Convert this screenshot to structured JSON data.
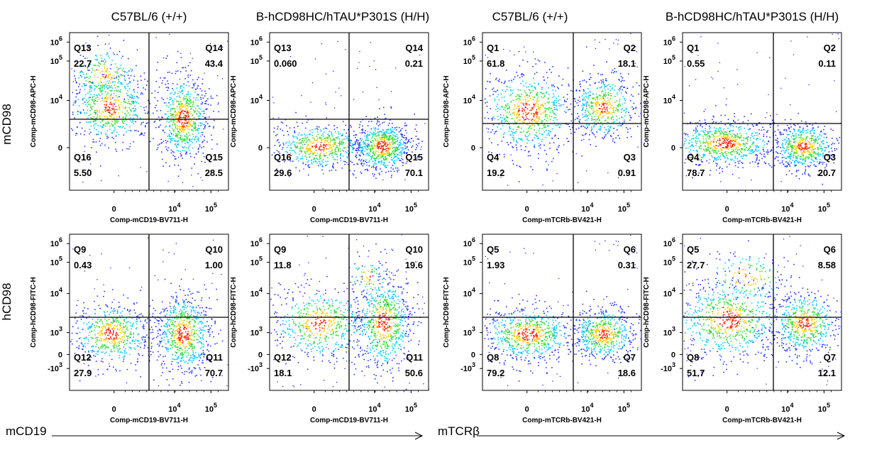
{
  "column_titles": [
    "C57BL/6 (+/+)",
    "B-hCD98HC/hTAU*P301S (H/H)",
    "C57BL/6 (+/+)",
    "B-hCD98HC/hTAU*P301S (H/H)"
  ],
  "row_labels": [
    "mCD98",
    "hCD98"
  ],
  "bottom_axis_labels": [
    "mCD19",
    "mTCRβ"
  ],
  "colors": {
    "density_low": "#0000ff",
    "density_mid": "#00ff00",
    "density_high": "#ff0000",
    "gate_line": "#000000"
  },
  "chart_data": [
    {
      "type": "scatter",
      "xlabel": "Comp-mCD19-BV711-H",
      "ylabel": "Comp-mCD98-APC-H",
      "x_ticks": [
        "0",
        "10^4",
        "10^5"
      ],
      "y_ticks": [
        "0",
        "10^4",
        "10^5",
        "10^6"
      ],
      "quadrants": [
        {
          "name": "Q13",
          "value": "22.7"
        },
        {
          "name": "Q14",
          "value": "43.4"
        },
        {
          "name": "Q16",
          "value": "5.50"
        },
        {
          "name": "Q15",
          "value": "28.5"
        }
      ]
    },
    {
      "type": "scatter",
      "xlabel": "Comp-mCD19-BV711-H",
      "ylabel": "Comp-mCD98-APC-H",
      "x_ticks": [
        "0",
        "10^4",
        "10^5"
      ],
      "y_ticks": [
        "0",
        "10^4",
        "10^5",
        "10^6"
      ],
      "quadrants": [
        {
          "name": "Q13",
          "value": "0.060"
        },
        {
          "name": "Q14",
          "value": "0.21"
        },
        {
          "name": "Q16",
          "value": "29.6"
        },
        {
          "name": "Q15",
          "value": "70.1"
        }
      ]
    },
    {
      "type": "scatter",
      "xlabel": "Comp-mTCRb-BV421-H",
      "ylabel": "Comp-mCD98-APC-H",
      "x_ticks": [
        "0",
        "10^4",
        "10^5"
      ],
      "y_ticks": [
        "0",
        "10^4",
        "10^5",
        "10^6"
      ],
      "quadrants": [
        {
          "name": "Q1",
          "value": "61.8"
        },
        {
          "name": "Q2",
          "value": "18.1"
        },
        {
          "name": "Q4",
          "value": "19.2"
        },
        {
          "name": "Q3",
          "value": "0.91"
        }
      ]
    },
    {
      "type": "scatter",
      "xlabel": "Comp-mTCRb-BV421-H",
      "ylabel": "Comp-mCD98-APC-H",
      "x_ticks": [
        "0",
        "10^4",
        "10^5"
      ],
      "y_ticks": [
        "0",
        "10^4",
        "10^5",
        "10^6"
      ],
      "quadrants": [
        {
          "name": "Q1",
          "value": "0.55"
        },
        {
          "name": "Q2",
          "value": "0.11"
        },
        {
          "name": "Q4",
          "value": "78.7"
        },
        {
          "name": "Q3",
          "value": "20.7"
        }
      ]
    },
    {
      "type": "scatter",
      "xlabel": "Comp-mCD19-BV711-H",
      "ylabel": "Comp-hCD98-FITC-H",
      "x_ticks": [
        "0",
        "10^4",
        "10^5"
      ],
      "y_ticks": [
        "-10^3",
        "0",
        "10^3",
        "10^4",
        "10^5",
        "10^6"
      ],
      "quadrants": [
        {
          "name": "Q9",
          "value": "0.43"
        },
        {
          "name": "Q10",
          "value": "1.00"
        },
        {
          "name": "Q12",
          "value": "27.9"
        },
        {
          "name": "Q11",
          "value": "70.7"
        }
      ]
    },
    {
      "type": "scatter",
      "xlabel": "Comp-mCD19-BV711-H",
      "ylabel": "Comp-hCD98-FITC-H",
      "x_ticks": [
        "0",
        "10^4",
        "10^5"
      ],
      "y_ticks": [
        "-10^3",
        "0",
        "10^3",
        "10^4",
        "10^5",
        "10^6"
      ],
      "quadrants": [
        {
          "name": "Q9",
          "value": "11.8"
        },
        {
          "name": "Q10",
          "value": "19.6"
        },
        {
          "name": "Q12",
          "value": "18.1"
        },
        {
          "name": "Q11",
          "value": "50.6"
        }
      ]
    },
    {
      "type": "scatter",
      "xlabel": "Comp-mTCRb-BV421-H",
      "ylabel": "Comp-hCD98-FITC-H",
      "x_ticks": [
        "0",
        "10^4",
        "10^5"
      ],
      "y_ticks": [
        "-10^3",
        "0",
        "10^3",
        "10^4",
        "10^5",
        "10^6"
      ],
      "quadrants": [
        {
          "name": "Q5",
          "value": "1.93"
        },
        {
          "name": "Q6",
          "value": "0.31"
        },
        {
          "name": "Q8",
          "value": "79.2"
        },
        {
          "name": "Q7",
          "value": "18.6"
        }
      ]
    },
    {
      "type": "scatter",
      "xlabel": "Comp-mTCRb-BV421-H",
      "ylabel": "Comp-hCD98-FITC-H",
      "x_ticks": [
        "0",
        "10^4",
        "10^5"
      ],
      "y_ticks": [
        "-10^3",
        "0",
        "10^3",
        "10^4",
        "10^5",
        "10^6"
      ],
      "quadrants": [
        {
          "name": "Q5",
          "value": "27.7"
        },
        {
          "name": "Q6",
          "value": "8.58"
        },
        {
          "name": "Q8",
          "value": "51.7"
        },
        {
          "name": "Q7",
          "value": "12.1"
        }
      ]
    }
  ]
}
